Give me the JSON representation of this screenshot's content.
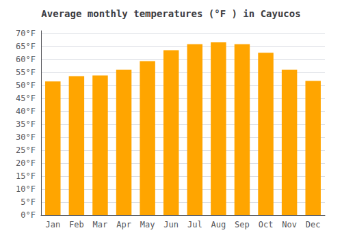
{
  "chart_data": {
    "type": "bar",
    "title": "Average monthly temperatures (°F ) in Cayucos",
    "categories": [
      "Jan",
      "Feb",
      "Mar",
      "Apr",
      "May",
      "Jun",
      "Jul",
      "Aug",
      "Sep",
      "Oct",
      "Nov",
      "Dec"
    ],
    "values": [
      51.5,
      53.5,
      53.8,
      56.0,
      59.3,
      63.5,
      65.8,
      66.5,
      65.8,
      62.5,
      56.0,
      51.7
    ],
    "color": "#FFA500",
    "ylim": [
      0,
      71
    ],
    "yticks": [
      {
        "value": 0,
        "label": "0°F"
      },
      {
        "value": 5,
        "label": "5°F"
      },
      {
        "value": 10,
        "label": "10°F"
      },
      {
        "value": 15,
        "label": "15°F"
      },
      {
        "value": 20,
        "label": "20°F"
      },
      {
        "value": 25,
        "label": "25°F"
      },
      {
        "value": 30,
        "label": "30°F"
      },
      {
        "value": 35,
        "label": "35°F"
      },
      {
        "value": 40,
        "label": "40°F"
      },
      {
        "value": 45,
        "label": "45°F"
      },
      {
        "value": 50,
        "label": "50°F"
      },
      {
        "value": 55,
        "label": "55°F"
      },
      {
        "value": 60,
        "label": "60°F"
      },
      {
        "value": 65,
        "label": "65°F"
      },
      {
        "value": 70,
        "label": "70°F"
      }
    ],
    "grid": true
  }
}
